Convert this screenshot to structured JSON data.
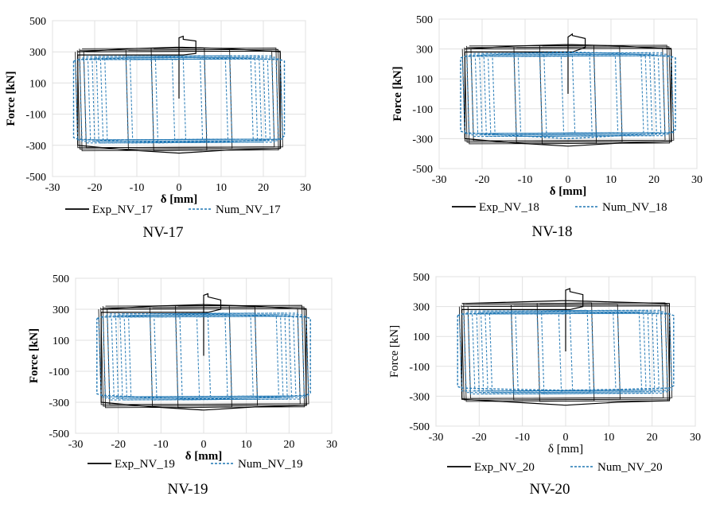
{
  "chart_data": [
    {
      "type": "line",
      "caption": "NV-17",
      "xlabel": "δ [mm]",
      "ylabel": "Force [kN]",
      "xlim": [
        -30,
        30
      ],
      "ylim": [
        -500,
        500
      ],
      "xticks": [
        "-30",
        "-20",
        "-10",
        "0",
        "10",
        "20",
        "30"
      ],
      "yticks": [
        "500",
        "300",
        "100",
        "-100",
        "-300",
        "-500"
      ],
      "grid": true,
      "legend_position": "bottom",
      "series": [
        {
          "name": "Exp_NV_17",
          "color": "#000000",
          "style": "solid",
          "x": [
            0,
            0,
            1,
            1,
            4,
            4,
            1,
            -24,
            -24,
            -12,
            0,
            12,
            24,
            24,
            12,
            0,
            -12,
            -24
          ],
          "y": [
            0,
            390,
            400,
            380,
            370,
            290,
            280,
            280,
            -300,
            -330,
            -350,
            -330,
            -320,
            300,
            320,
            330,
            320,
            300
          ]
        },
        {
          "name": "Num_NV_17",
          "color": "#1f77b4",
          "style": "dashed",
          "x": [
            -25,
            -24,
            -12,
            0,
            12,
            24,
            25,
            25,
            24,
            12,
            0,
            -12,
            -24,
            -25,
            -25
          ],
          "y": [
            240,
            250,
            260,
            265,
            260,
            250,
            240,
            -240,
            -260,
            -275,
            -280,
            -275,
            -260,
            -250,
            240
          ]
        }
      ]
    },
    {
      "type": "line",
      "caption": "NV-18",
      "xlabel": "δ [mm]",
      "ylabel": "Force [kN]",
      "xlim": [
        -30,
        30
      ],
      "ylim": [
        -500,
        500
      ],
      "xticks": [
        "-30",
        "-20",
        "-10",
        "0",
        "10",
        "20",
        "30"
      ],
      "yticks": [
        "500",
        "300",
        "100",
        "-100",
        "-300",
        "-500"
      ],
      "grid": true,
      "legend_position": "bottom",
      "series": [
        {
          "name": "Exp_NV_18",
          "color": "#000000",
          "style": "solid",
          "x": [
            0,
            0,
            1,
            1,
            4,
            4,
            1,
            -24,
            -24,
            -12,
            0,
            12,
            24,
            24,
            12,
            0,
            -12,
            -24
          ],
          "y": [
            0,
            380,
            400,
            390,
            370,
            310,
            280,
            280,
            -300,
            -330,
            -350,
            -330,
            -320,
            300,
            320,
            330,
            320,
            300
          ]
        },
        {
          "name": "Num_NV_18",
          "color": "#1f77b4",
          "style": "dashed",
          "x": [
            -25,
            -24,
            -12,
            0,
            12,
            24,
            25,
            25,
            24,
            12,
            0,
            -12,
            -24,
            -25,
            -25
          ],
          "y": [
            240,
            250,
            270,
            280,
            270,
            250,
            240,
            -240,
            -260,
            -280,
            -300,
            -280,
            -260,
            -250,
            240
          ]
        }
      ]
    },
    {
      "type": "line",
      "caption": "NV-19",
      "xlabel": "δ [mm]",
      "ylabel": "Force [kN]",
      "xlim": [
        -30,
        30
      ],
      "ylim": [
        -500,
        500
      ],
      "xticks": [
        "-30",
        "-20",
        "-10",
        "0",
        "10",
        "20",
        "30"
      ],
      "yticks": [
        "500",
        "300",
        "100",
        "-100",
        "-300",
        "-500"
      ],
      "grid": true,
      "legend_position": "bottom",
      "series": [
        {
          "name": "Exp_NV_19",
          "color": "#000000",
          "style": "solid",
          "x": [
            0,
            0,
            1,
            1,
            4,
            4,
            1,
            -24,
            -24,
            -12,
            0,
            12,
            24,
            24,
            12,
            0,
            -12,
            -24
          ],
          "y": [
            0,
            390,
            400,
            380,
            360,
            300,
            280,
            280,
            -300,
            -330,
            -350,
            -330,
            -320,
            300,
            320,
            330,
            320,
            300
          ]
        },
        {
          "name": "Num_NV_19",
          "color": "#1f77b4",
          "style": "dashed",
          "x": [
            -25,
            -24,
            -12,
            0,
            12,
            24,
            25,
            25,
            24,
            12,
            0,
            -12,
            -24,
            -25,
            -25
          ],
          "y": [
            240,
            250,
            260,
            270,
            260,
            250,
            240,
            -240,
            -255,
            -270,
            -280,
            -270,
            -255,
            -245,
            240
          ]
        }
      ]
    },
    {
      "type": "line",
      "caption": "NV-20",
      "xlabel": "δ [mm]",
      "ylabel": "Force [kN]",
      "xlim": [
        -30,
        30
      ],
      "ylim": [
        -500,
        500
      ],
      "xticks": [
        "-30",
        "-20",
        "-10",
        "0",
        "10",
        "20",
        "30"
      ],
      "yticks": [
        "500",
        "300",
        "100",
        "-100",
        "-300",
        "-500"
      ],
      "grid": true,
      "legend_position": "bottom",
      "series": [
        {
          "name": "Exp_NV_20",
          "color": "#000000",
          "style": "solid",
          "x": [
            0,
            0,
            1,
            1,
            4,
            4,
            1,
            -24,
            -24,
            -12,
            0,
            12,
            24,
            24,
            12,
            0,
            -12,
            -24
          ],
          "y": [
            0,
            410,
            420,
            400,
            380,
            300,
            280,
            280,
            -320,
            -340,
            -360,
            -340,
            -330,
            320,
            330,
            340,
            330,
            320
          ]
        },
        {
          "name": "Num_NV_20",
          "color": "#1f77b4",
          "style": "dashed",
          "x": [
            -25,
            -24,
            -12,
            0,
            12,
            24,
            25,
            25,
            24,
            12,
            0,
            -12,
            -24,
            -25,
            -25
          ],
          "y": [
            240,
            250,
            260,
            265,
            260,
            250,
            240,
            -230,
            -245,
            -255,
            -260,
            -255,
            -245,
            -235,
            240
          ]
        }
      ]
    }
  ]
}
